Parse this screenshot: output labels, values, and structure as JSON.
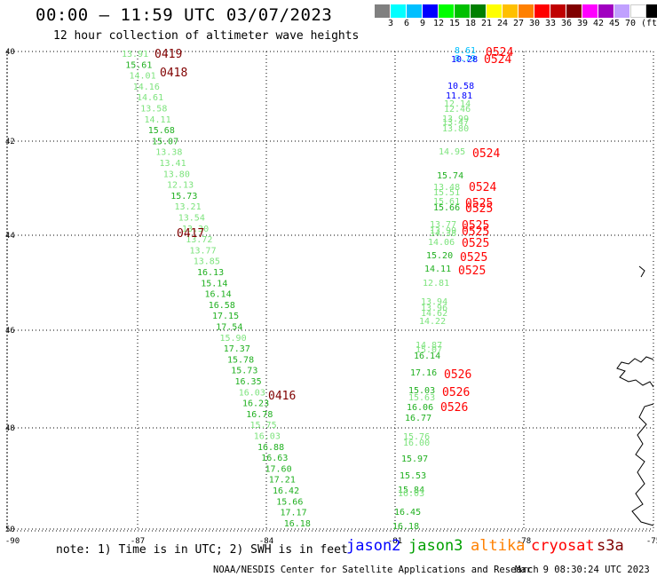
{
  "header": {
    "title": "00:00 – 11:59 UTC 03/07/2023",
    "subtitle": "12 hour collection of altimeter wave heights"
  },
  "legend": {
    "colors": [
      "#808080",
      "#00ffff",
      "#00bfff",
      "#0000ff",
      "#00ff00",
      "#00c000",
      "#008000",
      "#ffff00",
      "#ffc000",
      "#ff8000",
      "#ff0000",
      "#c00000",
      "#800000",
      "#ff00ff",
      "#a000c0",
      "#c0a0ff",
      "#ffffff",
      "#000000"
    ],
    "labels": [
      "3",
      "6",
      "9",
      "12",
      "15",
      "18",
      "21",
      "24",
      "27",
      "30",
      "33",
      "36",
      "39",
      "42",
      "45",
      "70",
      "(ft)"
    ]
  },
  "axes": {
    "lat_labels": [
      "40",
      "42",
      "44",
      "46",
      "48",
      "50"
    ],
    "lon_labels": [
      "-90",
      "-87",
      "-84",
      "-81",
      "-78",
      "-75"
    ]
  },
  "track_colors": {
    "light": "#7ce37c",
    "green": "#20b020",
    "blue": "#0000ff",
    "cyan": "#00bfff",
    "red": "#ff0000",
    "dark": "#800000"
  },
  "tracks": {
    "left_values": [
      [
        "13.91",
        "light"
      ],
      [
        "15.61",
        "green"
      ],
      [
        "14.01",
        "light"
      ],
      [
        "14.16",
        "light"
      ],
      [
        "14.61",
        "light"
      ],
      [
        "13.58",
        "light"
      ],
      [
        "14.11",
        "light"
      ],
      [
        "15.68",
        "green"
      ],
      [
        "15.07",
        "green"
      ],
      [
        "13.38",
        "light"
      ],
      [
        "13.41",
        "light"
      ],
      [
        "13.80",
        "light"
      ],
      [
        "12.13",
        "light"
      ],
      [
        "15.73",
        "green"
      ],
      [
        "13.21",
        "light"
      ],
      [
        "13.54",
        "light"
      ],
      [
        "13.30",
        "light"
      ],
      [
        "13.72",
        "light"
      ],
      [
        "13.77",
        "light"
      ],
      [
        "13.85",
        "light"
      ],
      [
        "16.13",
        "green"
      ],
      [
        "15.14",
        "green"
      ],
      [
        "16.14",
        "green"
      ],
      [
        "16.58",
        "green"
      ],
      [
        "17.15",
        "green"
      ],
      [
        "17.54",
        "green"
      ],
      [
        "15.90",
        "light"
      ],
      [
        "17.37",
        "green"
      ],
      [
        "15.78",
        "green"
      ],
      [
        "15.73",
        "green"
      ],
      [
        "16.35",
        "green"
      ],
      [
        "16.03",
        "light"
      ],
      [
        "16.23",
        "green"
      ],
      [
        "16.78",
        "green"
      ],
      [
        "15.75",
        "light"
      ],
      [
        "16.03",
        "light"
      ],
      [
        "16.88",
        "green"
      ],
      [
        "16.63",
        "green"
      ],
      [
        "17.60",
        "green"
      ],
      [
        "17.21",
        "green"
      ],
      [
        "16.42",
        "green"
      ],
      [
        "15.66",
        "green"
      ],
      [
        "17.17",
        "green"
      ],
      [
        "16.18",
        "green"
      ]
    ],
    "left_pass_labels": [
      "0419",
      "0418",
      "0417",
      "0416"
    ],
    "right_values": [
      [
        "8.61",
        "cyan"
      ],
      [
        "8.79",
        "cyan"
      ],
      [
        "10.28",
        "blue"
      ],
      [
        "10.58",
        "blue"
      ],
      [
        "11.81",
        "blue"
      ],
      [
        "12.14",
        "light"
      ],
      [
        "12.46",
        "light"
      ],
      [
        "13.99",
        "light"
      ],
      [
        "13.47",
        "light"
      ],
      [
        "13.80",
        "light"
      ],
      [
        "14.95",
        "light"
      ],
      [
        "15.74",
        "green"
      ],
      [
        "13.48",
        "light"
      ],
      [
        "15.51",
        "light"
      ],
      [
        "15.61",
        "light"
      ],
      [
        "15.66",
        "green"
      ],
      [
        "13.77",
        "light"
      ],
      [
        "13.99",
        "light"
      ],
      [
        "14.38",
        "light"
      ],
      [
        "14.06",
        "light"
      ],
      [
        "15.20",
        "green"
      ],
      [
        "14.11",
        "green"
      ],
      [
        "12.81",
        "light"
      ],
      [
        "13.94",
        "light"
      ],
      [
        "13.96",
        "light"
      ],
      [
        "14.62",
        "light"
      ],
      [
        "14.22",
        "light"
      ],
      [
        "14.87",
        "light"
      ],
      [
        "15.07",
        "light"
      ],
      [
        "16.14",
        "green"
      ],
      [
        "17.16",
        "green"
      ],
      [
        "15.03",
        "green"
      ],
      [
        "15.63",
        "light"
      ],
      [
        "16.06",
        "green"
      ],
      [
        "16.77",
        "green"
      ],
      [
        "15.76",
        "light"
      ],
      [
        "16.00",
        "light"
      ],
      [
        "15.97",
        "green"
      ],
      [
        "15.53",
        "green"
      ],
      [
        "15.84",
        "green"
      ],
      [
        "16.03",
        "light"
      ],
      [
        "16.45",
        "green"
      ],
      [
        "16.18",
        "green"
      ]
    ],
    "right_pass_labels": [
      "0524",
      "0524",
      "0524",
      "0524",
      "0525",
      "0525",
      "0525",
      "0525",
      "0525",
      "0525",
      "0525",
      "0526",
      "0526",
      "0526"
    ]
  },
  "footer": {
    "note": "note: 1) Time is in UTC; 2) SWH is in feet",
    "satellites": [
      {
        "name": "jason2",
        "color": "#0000ff"
      },
      {
        "name": "jason3",
        "color": "#00a000"
      },
      {
        "name": "altika",
        "color": "#ff8000"
      },
      {
        "name": "cryosat",
        "color": "#ff0000"
      },
      {
        "name": "s3a",
        "color": "#800000"
      }
    ],
    "credit": "NOAA/NESDIS Center for Satellite Applications and Research",
    "timestamp": "Mar  9 08:30:24 UTC 2023"
  }
}
